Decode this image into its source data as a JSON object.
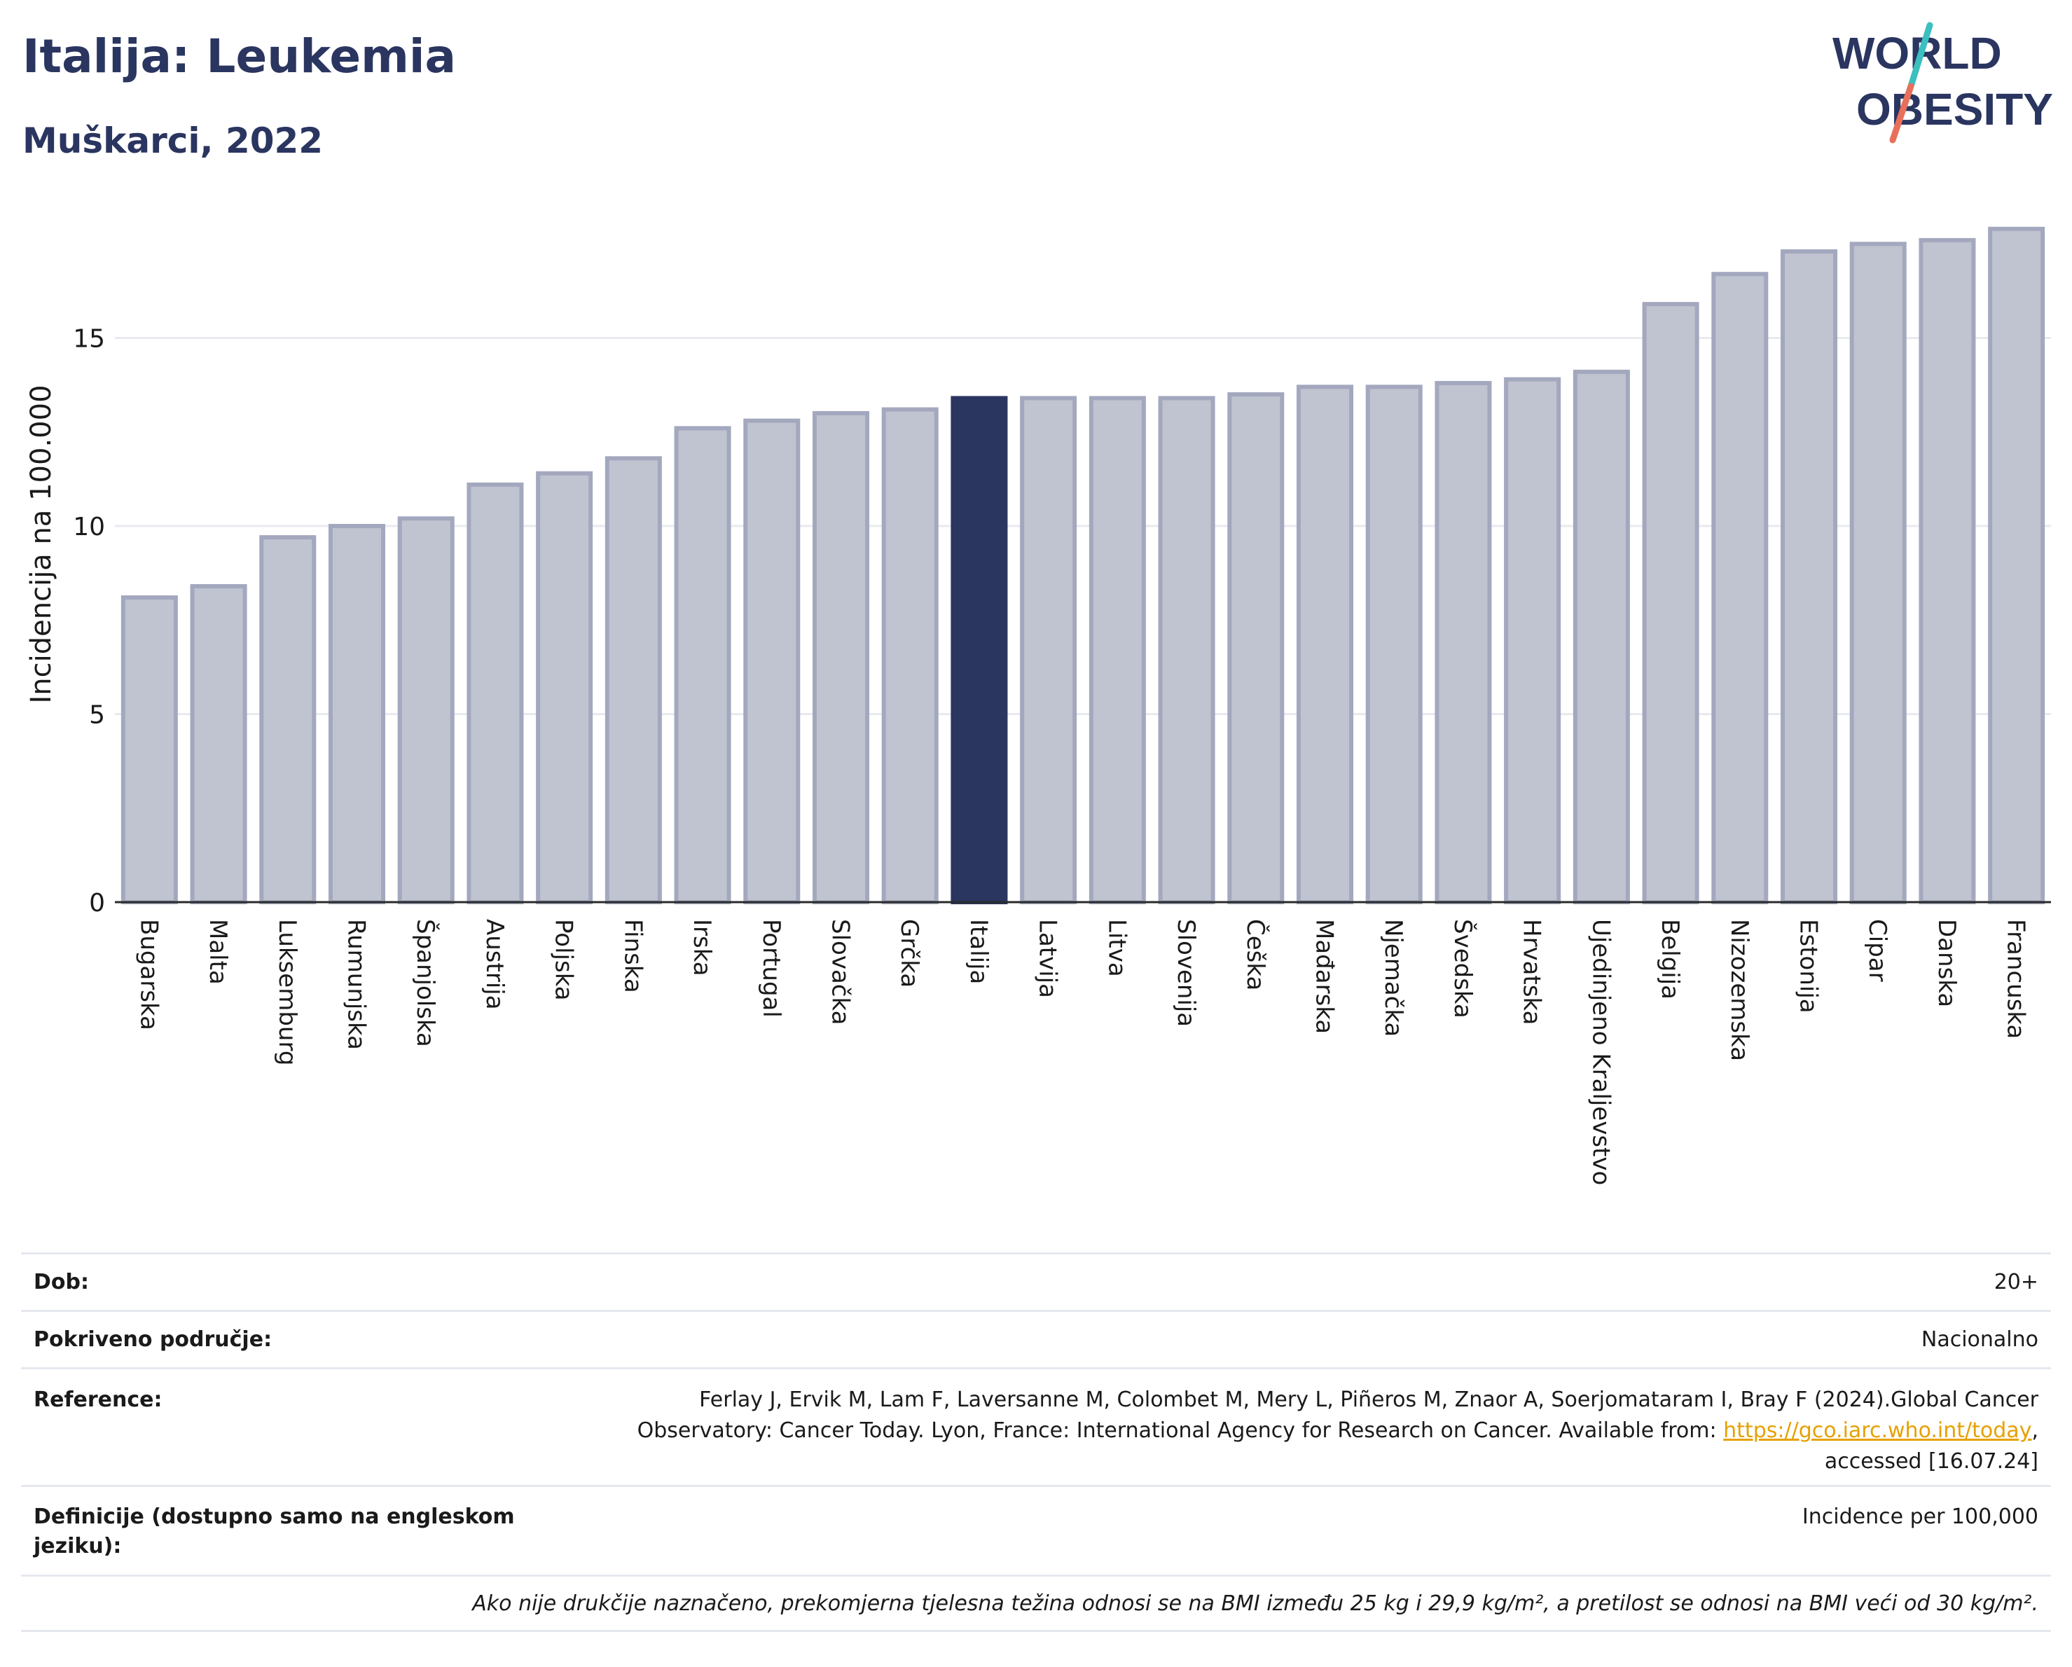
{
  "header": {
    "title": "Italija: Leukemia",
    "subtitle": "Muškarci, 2022"
  },
  "logo": {
    "line1": "WORLD",
    "line2": "OBESITY",
    "slash_colors": [
      "#e8705b",
      "#3bbfbf"
    ]
  },
  "chart_data": {
    "type": "bar",
    "ylabel": "Incidencija na 100.000",
    "xlabel": "",
    "ylim": [
      0,
      18.5
    ],
    "yticks": [
      0,
      5,
      10,
      15
    ],
    "grid": true,
    "highlight": "Italija",
    "colors": {
      "bar": "#c0c3d0",
      "bar_border": "#a3a8be",
      "highlight": "#2a3560"
    },
    "categories": [
      "Bugarska",
      "Malta",
      "Luksemburg",
      "Rumunjska",
      "Španjolska",
      "Austrija",
      "Poljska",
      "Finska",
      "Irska",
      "Portugal",
      "Slovačka",
      "Grčka",
      "Italija",
      "Latvija",
      "Litva",
      "Slovenija",
      "Češka",
      "Mađarska",
      "Njemačka",
      "Švedska",
      "Hrvatska",
      "Ujedinjeno Kraljevstvo",
      "Belgija",
      "Nizozemska",
      "Estonija",
      "Cipar",
      "Danska",
      "Francuska"
    ],
    "values": [
      8.1,
      8.4,
      9.7,
      10.0,
      10.2,
      11.1,
      11.4,
      11.8,
      12.6,
      12.8,
      13.0,
      13.1,
      13.4,
      13.4,
      13.4,
      13.4,
      13.5,
      13.7,
      13.7,
      13.8,
      13.9,
      14.1,
      15.9,
      16.7,
      17.3,
      17.5,
      17.6,
      17.9
    ]
  },
  "info": {
    "dob_label": "Dob:",
    "dob_value": "20+",
    "area_label": "Pokriveno područje:",
    "area_value": "Nacionalno",
    "ref_label": "Reference:",
    "ref_text1": "Ferlay J, Ervik M, Lam F, Laversanne M, Colombet M, Mery L, Piñeros M, Znaor A, Soerjomataram I, Bray F (2024).Global Cancer Observatory: Cancer Today. Lyon, France: International Agency for Research on Cancer. Available from: ",
    "ref_link": "https://gco.iarc.who.int/today",
    "ref_text2": ", accessed [16.07.24]",
    "def_label": "Definicije (dostupno samo na engleskom jeziku):",
    "def_value": "Incidence per 100,000",
    "note": "Ako nije drukčije naznačeno, prekomjerna tjelesna težina odnosi se na BMI između 25 kg i 29,9 kg/m², a pretilost se odnosi na BMI veći od 30 kg/m²."
  }
}
